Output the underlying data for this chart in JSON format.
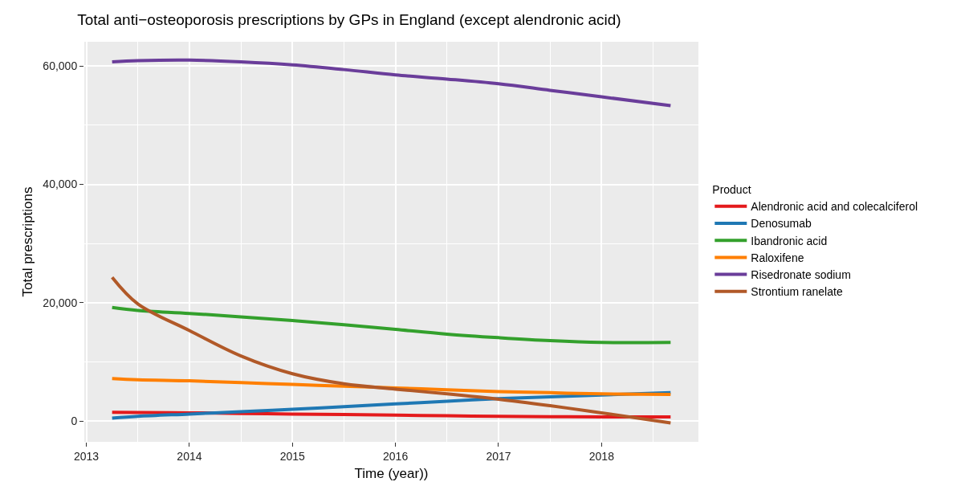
{
  "chart_data": {
    "type": "line",
    "title": "Total anti−osteoporosis prescriptions by GPs in England (except alendronic acid)",
    "xlabel": "Time (year))",
    "ylabel": "Total prescriptions",
    "legend_title": "Product",
    "legend": "right",
    "grid": true,
    "marker": "none",
    "line_style": "solid",
    "xlim": [
      2012.98,
      2018.94
    ],
    "xticks": [
      2013,
      2014,
      2015,
      2016,
      2017,
      2018
    ],
    "ylim": [
      -3500,
      64100
    ],
    "yticks": [
      {
        "value": 0,
        "label": "0"
      },
      {
        "value": 20000,
        "label": "20,000"
      },
      {
        "value": 40000,
        "label": "40,000"
      },
      {
        "value": 60000,
        "label": "60,000"
      }
    ],
    "x": [
      2013.25,
      2013.5,
      2014,
      2014.5,
      2015,
      2015.5,
      2016,
      2016.5,
      2017,
      2017.5,
      2018,
      2018.67
    ],
    "series": [
      {
        "name": "Alendronic acid and colecalciferol",
        "color": "#e41a1c",
        "values": [
          1500,
          1450,
          1400,
          1300,
          1200,
          1100,
          1000,
          900,
          800,
          750,
          700,
          700
        ]
      },
      {
        "name": "Denosumab",
        "color": "#1f78b4",
        "values": [
          500,
          800,
          1200,
          1600,
          2000,
          2450,
          2900,
          3350,
          3800,
          4100,
          4400,
          4800
        ]
      },
      {
        "name": "Ibandronic acid",
        "color": "#33a02c",
        "values": [
          19200,
          18700,
          18200,
          17600,
          17000,
          16300,
          15500,
          14700,
          14100,
          13600,
          13300,
          13300
        ]
      },
      {
        "name": "Raloxifene",
        "color": "#ff7f00",
        "values": [
          7200,
          7000,
          6800,
          6500,
          6200,
          5900,
          5600,
          5300,
          5000,
          4800,
          4600,
          4500
        ]
      },
      {
        "name": "Risedronate sodium",
        "color": "#6a3d9a",
        "values": [
          60700,
          60900,
          61000,
          60700,
          60200,
          59400,
          58500,
          57800,
          57000,
          55900,
          54800,
          53300
        ]
      },
      {
        "name": "Strontium ranelate",
        "color": "#b15928",
        "values": [
          24300,
          19800,
          15300,
          11000,
          8000,
          6300,
          5400,
          4600,
          3700,
          2600,
          1400,
          -300
        ]
      }
    ]
  }
}
